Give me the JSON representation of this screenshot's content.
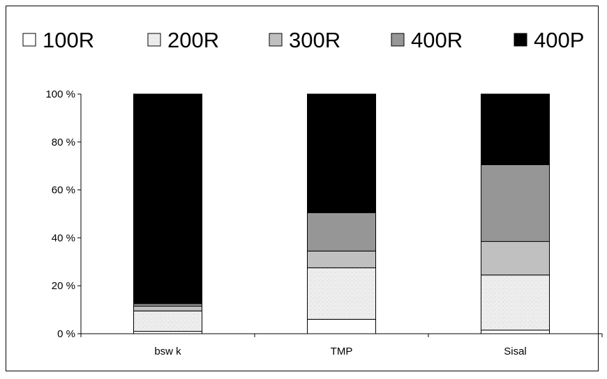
{
  "chart_data": {
    "type": "bar",
    "stacked": true,
    "percent": true,
    "categories": [
      "bsw k",
      "TMP",
      "Sisal"
    ],
    "series": [
      {
        "name": "100R",
        "color": "#ffffff",
        "pattern": "none",
        "values": [
          1,
          6,
          1.5
        ]
      },
      {
        "name": "200R",
        "color": "#eaeaea",
        "pattern": "speckle",
        "values": [
          8.5,
          21.5,
          23
        ]
      },
      {
        "name": "300R",
        "color": "#c0c0c0",
        "pattern": "none",
        "values": [
          2,
          7,
          14
        ]
      },
      {
        "name": "400R",
        "color": "#969696",
        "pattern": "none",
        "values": [
          1,
          16,
          32
        ]
      },
      {
        "name": "400P",
        "color": "#000000",
        "pattern": "none",
        "values": [
          87.5,
          49.5,
          29.5
        ]
      }
    ],
    "yticks": [
      "0 %",
      "20 %",
      "40 %",
      "60 %",
      "80 %",
      "100 %"
    ],
    "ylim": [
      0,
      100
    ],
    "grid": false,
    "legend_position": "top"
  }
}
